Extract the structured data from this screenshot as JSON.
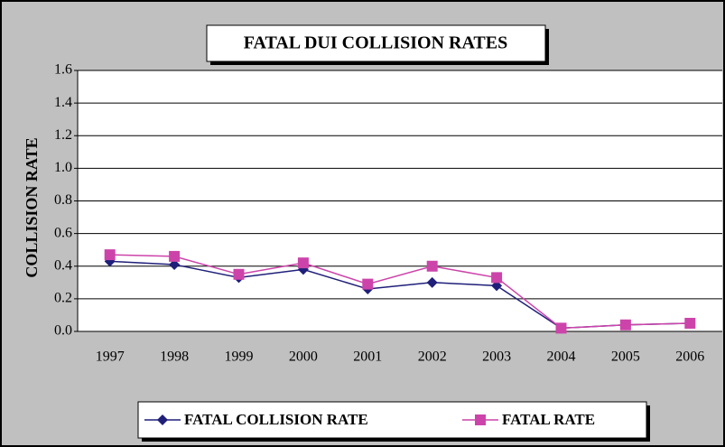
{
  "chart_data": {
    "type": "line",
    "title": "FATAL DUI COLLISION RATES",
    "y_label": "COLLISION RATE",
    "categories": [
      "1997",
      "1998",
      "1999",
      "2000",
      "2001",
      "2002",
      "2003",
      "2004",
      "2005",
      "2006"
    ],
    "series": [
      {
        "name": "FATAL COLLISION RATE",
        "color": "#1f1f7a",
        "marker": "diamond",
        "values": [
          0.43,
          0.41,
          0.33,
          0.38,
          0.26,
          0.3,
          0.28,
          0.02,
          0.04,
          0.05
        ]
      },
      {
        "name": "FATAL RATE",
        "color": "#cc44aa",
        "marker": "square",
        "values": [
          0.47,
          0.46,
          0.35,
          0.42,
          0.29,
          0.4,
          0.33,
          0.02,
          0.04,
          0.05
        ]
      }
    ],
    "ylim": [
      0,
      1.6
    ],
    "yticks": [
      {
        "value": 0,
        "label": "0.0"
      },
      0.2,
      0.4,
      0.6,
      0.8,
      {
        "value": 1,
        "label": "1.0"
      },
      1.2,
      1.4,
      1.6
    ],
    "grid": true,
    "legend": "bottom"
  }
}
